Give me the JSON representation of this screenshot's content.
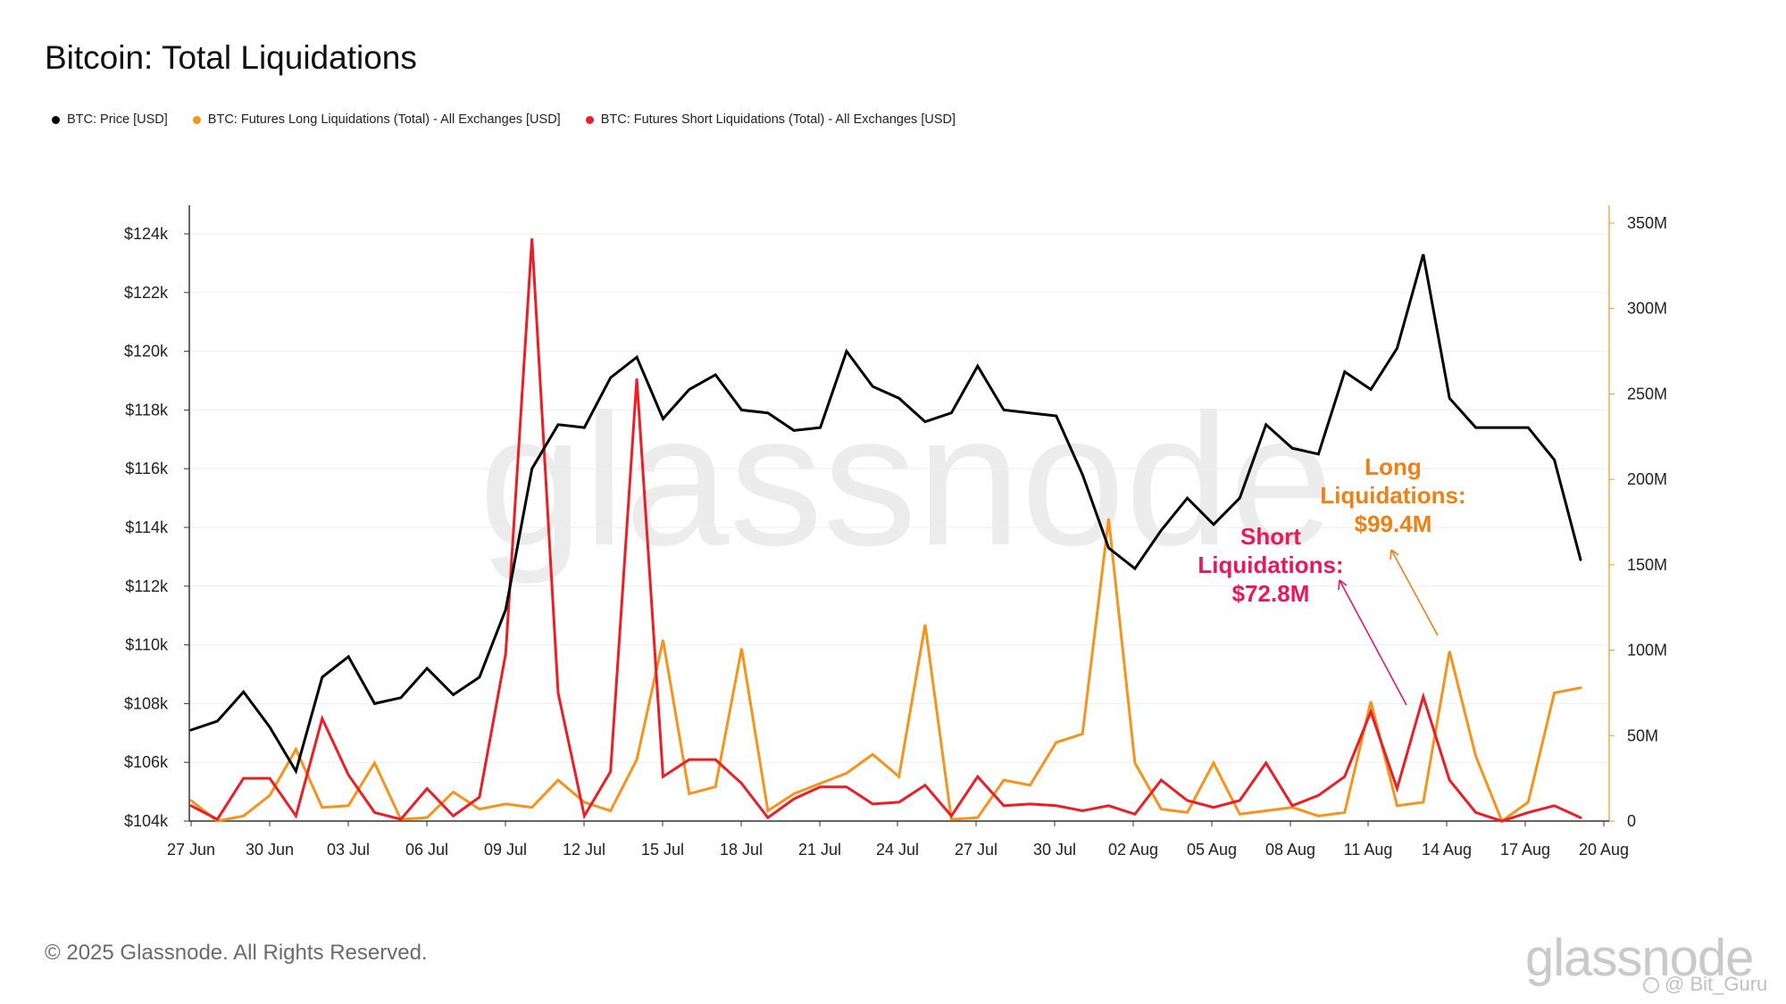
{
  "title": "Bitcoin: Total Liquidations",
  "legend": [
    {
      "label": "BTC: Price [USD]",
      "color": "#000000"
    },
    {
      "label": "BTC: Futures Long Liquidations (Total) - All Exchanges [USD]",
      "color": "#f7931a"
    },
    {
      "label": "BTC: Futures Short Liquidations (Total) - All Exchanges [USD]",
      "color": "#ee1c25"
    }
  ],
  "watermark": "glassnode",
  "footer": "© 2025 Glassnode. All Rights Reserved.",
  "brand": "glassnode",
  "credit": "@ Bit_Guru",
  "annotations": {
    "short": {
      "line1": "Short",
      "line2": "Liquidations:",
      "line3": "$72.8M",
      "color": "#e8185a"
    },
    "long": {
      "line1": "Long",
      "line2": "Liquidations:",
      "line3": "$99.4M",
      "color": "#f07f14"
    }
  },
  "chart_data": {
    "type": "line",
    "x_tick_labels": [
      "27 Jun",
      "30 Jun",
      "03 Jul",
      "06 Jul",
      "09 Jul",
      "12 Jul",
      "15 Jul",
      "18 Jul",
      "21 Jul",
      "24 Jul",
      "27 Jul",
      "30 Jul",
      "02 Aug",
      "05 Aug",
      "08 Aug",
      "11 Aug",
      "14 Aug",
      "17 Aug",
      "20 Aug"
    ],
    "x_start": "27 Jun",
    "x_end": "20 Aug",
    "y_left": {
      "ticks": [
        "$104k",
        "$106k",
        "$108k",
        "$110k",
        "$112k",
        "$114k",
        "$116k",
        "$118k",
        "$120k",
        "$122k",
        "$124k"
      ],
      "ylim": [
        104000,
        124000
      ]
    },
    "y_right": {
      "ticks": [
        "0",
        "50M",
        "100M",
        "150M",
        "200M",
        "250M",
        "300M",
        "350M"
      ],
      "ylim": [
        0,
        350000000
      ]
    },
    "series": [
      {
        "name": "BTC: Price [USD]",
        "axis": "left",
        "color": "#000000",
        "values": [
          107100,
          107400,
          108400,
          107200,
          105700,
          108900,
          109600,
          108000,
          108200,
          109200,
          108300,
          108900,
          111200,
          116000,
          117500,
          117400,
          119100,
          119800,
          117700,
          118700,
          119200,
          118000,
          117900,
          117300,
          117400,
          120000,
          118800,
          118400,
          117600,
          117900,
          119500,
          118000,
          117900,
          117800,
          115800,
          113300,
          112600,
          113900,
          115000,
          114100,
          115000,
          117500,
          116700,
          116500,
          119300,
          118700,
          120100,
          123300,
          118400,
          117400,
          117400,
          117400,
          116300,
          112900
        ]
      },
      {
        "name": "BTC: Futures Long Liquidations (Total) - All Exchanges [USD]",
        "axis": "right",
        "color": "#f7931a",
        "values": [
          12000000,
          0,
          3000000,
          15000000,
          42000000,
          8000000,
          9000000,
          34000000,
          1000000,
          2000000,
          17000000,
          7000000,
          10000000,
          8000000,
          24000000,
          11000000,
          6000000,
          36000000,
          106000000,
          16000000,
          20000000,
          101000000,
          6000000,
          16000000,
          22000000,
          28000000,
          39000000,
          26000000,
          115000000,
          1000000,
          2000000,
          24000000,
          21000000,
          46000000,
          51000000,
          177000000,
          34000000,
          7000000,
          5000000,
          34000000,
          4000000,
          6000000,
          8000000,
          3000000,
          5000000,
          70000000,
          9000000,
          11000000,
          99400000,
          38000000,
          0,
          11000000,
          75000000,
          78000000
        ]
      },
      {
        "name": "BTC: Futures Short Liquidations (Total) - All Exchanges [USD]",
        "axis": "right",
        "color": "#ee1c25",
        "values": [
          9000000,
          1000000,
          25000000,
          25000000,
          3000000,
          60000000,
          27000000,
          5000000,
          1000000,
          19000000,
          3000000,
          14000000,
          98000000,
          341000000,
          75000000,
          3000000,
          29000000,
          259000000,
          26000000,
          36000000,
          36000000,
          22000000,
          2000000,
          13000000,
          20000000,
          20000000,
          10000000,
          11000000,
          21000000,
          3000000,
          26000000,
          9000000,
          10000000,
          9000000,
          6000000,
          9000000,
          4000000,
          24000000,
          12000000,
          8000000,
          12000000,
          34000000,
          9000000,
          15000000,
          26000000,
          64000000,
          19000000,
          72800000,
          24000000,
          5000000,
          0,
          5000000,
          9000000,
          2000000
        ]
      }
    ]
  }
}
